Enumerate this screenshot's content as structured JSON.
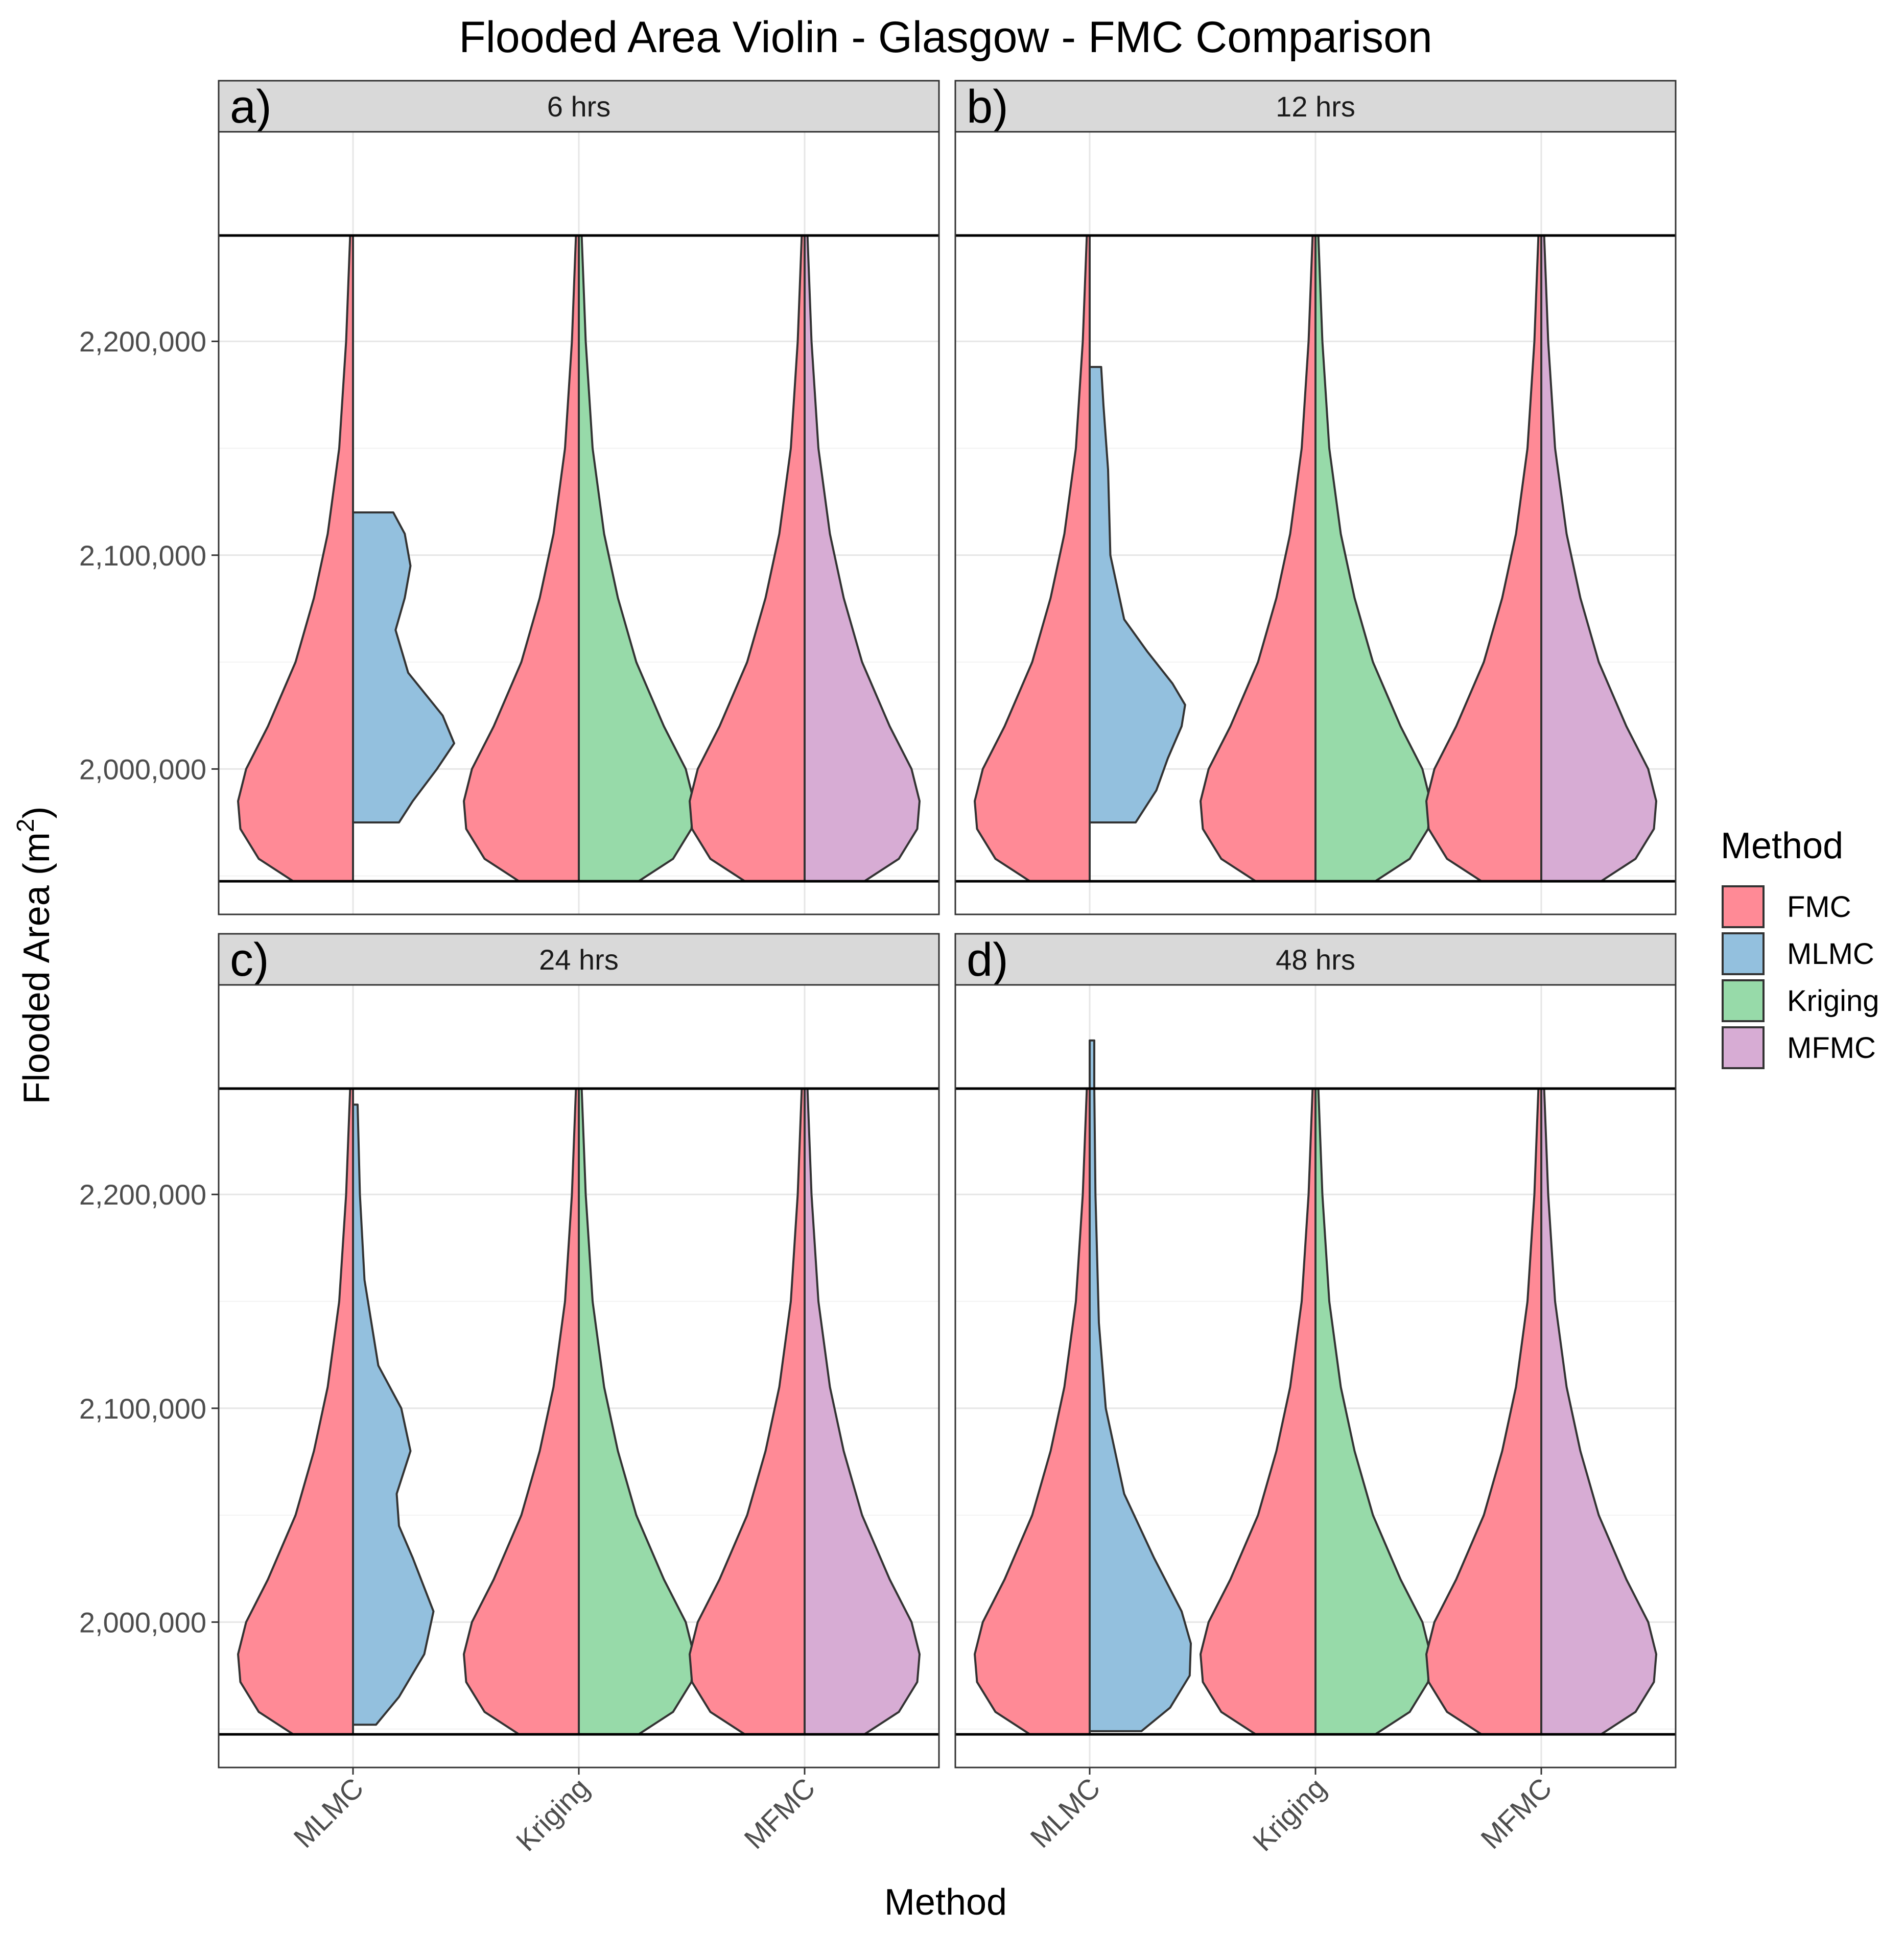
{
  "chart_data": {
    "type": "violin",
    "title": "Flooded Area Violin - Glasgow - FMC Comparison",
    "xlabel": "Method",
    "ylabel": "Flooded Area (m",
    "ylabel_superscript": "2",
    "ylabel_close": ")",
    "categories": [
      "MLMC",
      "Kriging",
      "MFMC"
    ],
    "ylim": [
      1932000,
      2298000
    ],
    "yticks": [
      2000000,
      2100000,
      2200000
    ],
    "ytick_labels": [
      "2,000,000",
      "2,100,000",
      "2,200,000"
    ],
    "reference_lines": [
      1947500,
      2249500
    ],
    "legend": {
      "title": "Method",
      "entries": [
        {
          "name": "FMC",
          "color": "#F8766D"
        },
        {
          "name": "MLMC",
          "color": "#619CFF"
        },
        {
          "name": "Kriging",
          "color": "#00BA38"
        },
        {
          "name": "MFMC",
          "color": "#C77CFF"
        }
      ]
    },
    "series_colors": {
      "FMC": "#FF8A96",
      "MLMC": "#93C0DE",
      "Kriging": "#97DAA9",
      "MFMC": "#D7ACD4"
    },
    "fmc_density": {
      "y": [
        1947500,
        1958000,
        1972000,
        1985000,
        2000000,
        2020000,
        2050000,
        2080000,
        2110000,
        2150000,
        2200000,
        2249500
      ],
      "width": [
        0.52,
        0.82,
        0.98,
        1.0,
        0.93,
        0.74,
        0.5,
        0.34,
        0.22,
        0.12,
        0.06,
        0.025
      ]
    },
    "panels": [
      {
        "tag": "a)",
        "strip": "6 hrs",
        "violins": [
          {
            "category": "MLMC",
            "method": "MLMC",
            "y": [
              1975000,
              1985000,
              2000000,
              2012000,
              2025000,
              2045000,
              2065000,
              2080000,
              2095000,
              2110000,
              2120000
            ],
            "width": [
              0.4,
              0.52,
              0.73,
              0.88,
              0.78,
              0.48,
              0.37,
              0.45,
              0.5,
              0.45,
              0.35
            ]
          },
          {
            "category": "Kriging",
            "method": "Kriging",
            "y": [
              1947500,
              1958000,
              1972000,
              1985000,
              2000000,
              2020000,
              2050000,
              2080000,
              2110000,
              2150000,
              2200000,
              2249500
            ],
            "width": [
              0.52,
              0.82,
              0.98,
              1.0,
              0.93,
              0.74,
              0.5,
              0.34,
              0.22,
              0.12,
              0.06,
              0.025
            ]
          },
          {
            "category": "MFMC",
            "method": "MFMC",
            "y": [
              1947500,
              1958000,
              1972000,
              1985000,
              2000000,
              2020000,
              2050000,
              2080000,
              2110000,
              2150000,
              2200000,
              2249500
            ],
            "width": [
              0.52,
              0.82,
              0.98,
              1.0,
              0.93,
              0.74,
              0.5,
              0.34,
              0.22,
              0.12,
              0.06,
              0.025
            ]
          }
        ]
      },
      {
        "tag": "b)",
        "strip": "12 hrs",
        "violins": [
          {
            "category": "MLMC",
            "method": "MLMC",
            "y": [
              1975000,
              1990000,
              2005000,
              2020000,
              2030000,
              2040000,
              2055000,
              2070000,
              2100000,
              2140000,
              2170000,
              2188000
            ],
            "width": [
              0.4,
              0.58,
              0.68,
              0.8,
              0.83,
              0.72,
              0.5,
              0.3,
              0.18,
              0.16,
              0.12,
              0.1
            ]
          },
          {
            "category": "Kriging",
            "method": "Kriging",
            "y": [
              1947500,
              1958000,
              1972000,
              1985000,
              2000000,
              2020000,
              2050000,
              2080000,
              2110000,
              2150000,
              2200000,
              2249500
            ],
            "width": [
              0.52,
              0.82,
              0.98,
              1.0,
              0.93,
              0.74,
              0.5,
              0.34,
              0.22,
              0.12,
              0.06,
              0.025
            ]
          },
          {
            "category": "MFMC",
            "method": "MFMC",
            "y": [
              1947500,
              1958000,
              1972000,
              1985000,
              2000000,
              2020000,
              2050000,
              2080000,
              2110000,
              2150000,
              2200000,
              2249500
            ],
            "width": [
              0.52,
              0.82,
              0.98,
              1.0,
              0.93,
              0.74,
              0.5,
              0.34,
              0.22,
              0.12,
              0.06,
              0.025
            ]
          }
        ]
      },
      {
        "tag": "c)",
        "strip": "24 hrs",
        "violins": [
          {
            "category": "MLMC",
            "method": "MLMC",
            "y": [
              1952000,
              1965000,
              1985000,
              2005000,
              2030000,
              2045000,
              2060000,
              2080000,
              2100000,
              2120000,
              2160000,
              2200000,
              2242000
            ],
            "width": [
              0.2,
              0.4,
              0.62,
              0.7,
              0.52,
              0.4,
              0.38,
              0.5,
              0.42,
              0.22,
              0.1,
              0.06,
              0.04
            ]
          },
          {
            "category": "Kriging",
            "method": "Kriging",
            "y": [
              1947500,
              1958000,
              1972000,
              1985000,
              2000000,
              2020000,
              2050000,
              2080000,
              2110000,
              2150000,
              2200000,
              2249500
            ],
            "width": [
              0.52,
              0.82,
              0.98,
              1.0,
              0.93,
              0.74,
              0.5,
              0.34,
              0.22,
              0.12,
              0.06,
              0.025
            ]
          },
          {
            "category": "MFMC",
            "method": "MFMC",
            "y": [
              1947500,
              1958000,
              1972000,
              1985000,
              2000000,
              2020000,
              2050000,
              2080000,
              2110000,
              2150000,
              2200000,
              2249500
            ],
            "width": [
              0.52,
              0.82,
              0.98,
              1.0,
              0.93,
              0.74,
              0.5,
              0.34,
              0.22,
              0.12,
              0.06,
              0.025
            ]
          }
        ]
      },
      {
        "tag": "d)",
        "strip": "48 hrs",
        "violins": [
          {
            "category": "MLMC",
            "method": "MLMC",
            "y": [
              1949000,
              1960000,
              1975000,
              1990000,
              2005000,
              2030000,
              2060000,
              2100000,
              2140000,
              2200000,
              2250000,
              2272000
            ],
            "width": [
              0.45,
              0.7,
              0.87,
              0.88,
              0.8,
              0.56,
              0.3,
              0.14,
              0.08,
              0.05,
              0.04,
              0.04
            ]
          },
          {
            "category": "Kriging",
            "method": "Kriging",
            "y": [
              1947500,
              1958000,
              1972000,
              1985000,
              2000000,
              2020000,
              2050000,
              2080000,
              2110000,
              2150000,
              2200000,
              2249500
            ],
            "width": [
              0.52,
              0.82,
              0.98,
              1.0,
              0.93,
              0.74,
              0.5,
              0.34,
              0.22,
              0.12,
              0.06,
              0.025
            ]
          },
          {
            "category": "MFMC",
            "method": "MFMC",
            "y": [
              1947500,
              1958000,
              1972000,
              1985000,
              2000000,
              2020000,
              2050000,
              2080000,
              2110000,
              2150000,
              2200000,
              2249500
            ],
            "width": [
              0.52,
              0.82,
              0.98,
              1.0,
              0.93,
              0.74,
              0.5,
              0.34,
              0.22,
              0.12,
              0.06,
              0.025
            ]
          }
        ]
      }
    ]
  }
}
